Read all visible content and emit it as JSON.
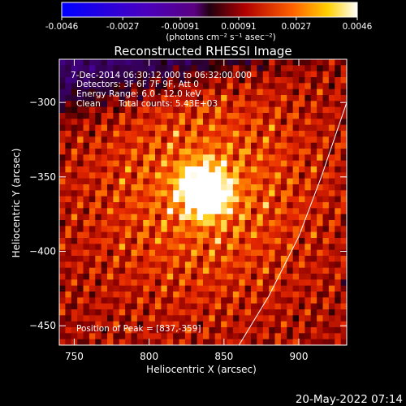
{
  "chart_data": {
    "type": "heatmap",
    "title": "Reconstructed RHESSI Image",
    "xlabel": "Heliocentric X (arcsec)",
    "ylabel": "Heliocentric Y (arcsec)",
    "xlim": [
      740,
      932
    ],
    "ylim": [
      -463,
      -271
    ],
    "x_ticks": [
      750,
      800,
      850,
      900
    ],
    "y_ticks": [
      -300,
      -350,
      -400,
      -450
    ],
    "colorbar": {
      "range": [
        -0.0046,
        0.0046
      ],
      "tick_values": [
        -0.0046,
        -0.0027,
        -0.00091,
        0.00091,
        0.0027,
        0.0046
      ],
      "tick_labels": [
        "-0.0046",
        "-0.0027",
        "-0.00091",
        "0.00091",
        "0.0027",
        "0.0046"
      ],
      "unit_label": "(photons cm⁻² s⁻¹ asec⁻²)"
    },
    "annotations": {
      "time_range": "7-Dec-2014 06:30:12.000 to 06:32:00.000",
      "detectors": "Detectors: 3F 6F 7F 9F, Att 0",
      "energy_range": "Energy Range: 6.0 - 12.0 keV",
      "method": "Clean",
      "total_counts": "Total counts: 5.43E+03",
      "peak_label": "Position of Peak = [837,-359]"
    },
    "peak": [
      837,
      -359
    ],
    "limb_curve": [
      [
        860,
        -463
      ],
      [
        880,
        -430
      ],
      [
        900,
        -390
      ],
      [
        915,
        -350
      ],
      [
        932,
        -300
      ]
    ]
  },
  "footer": {
    "timestamp": "20-May-2022 07:14"
  }
}
